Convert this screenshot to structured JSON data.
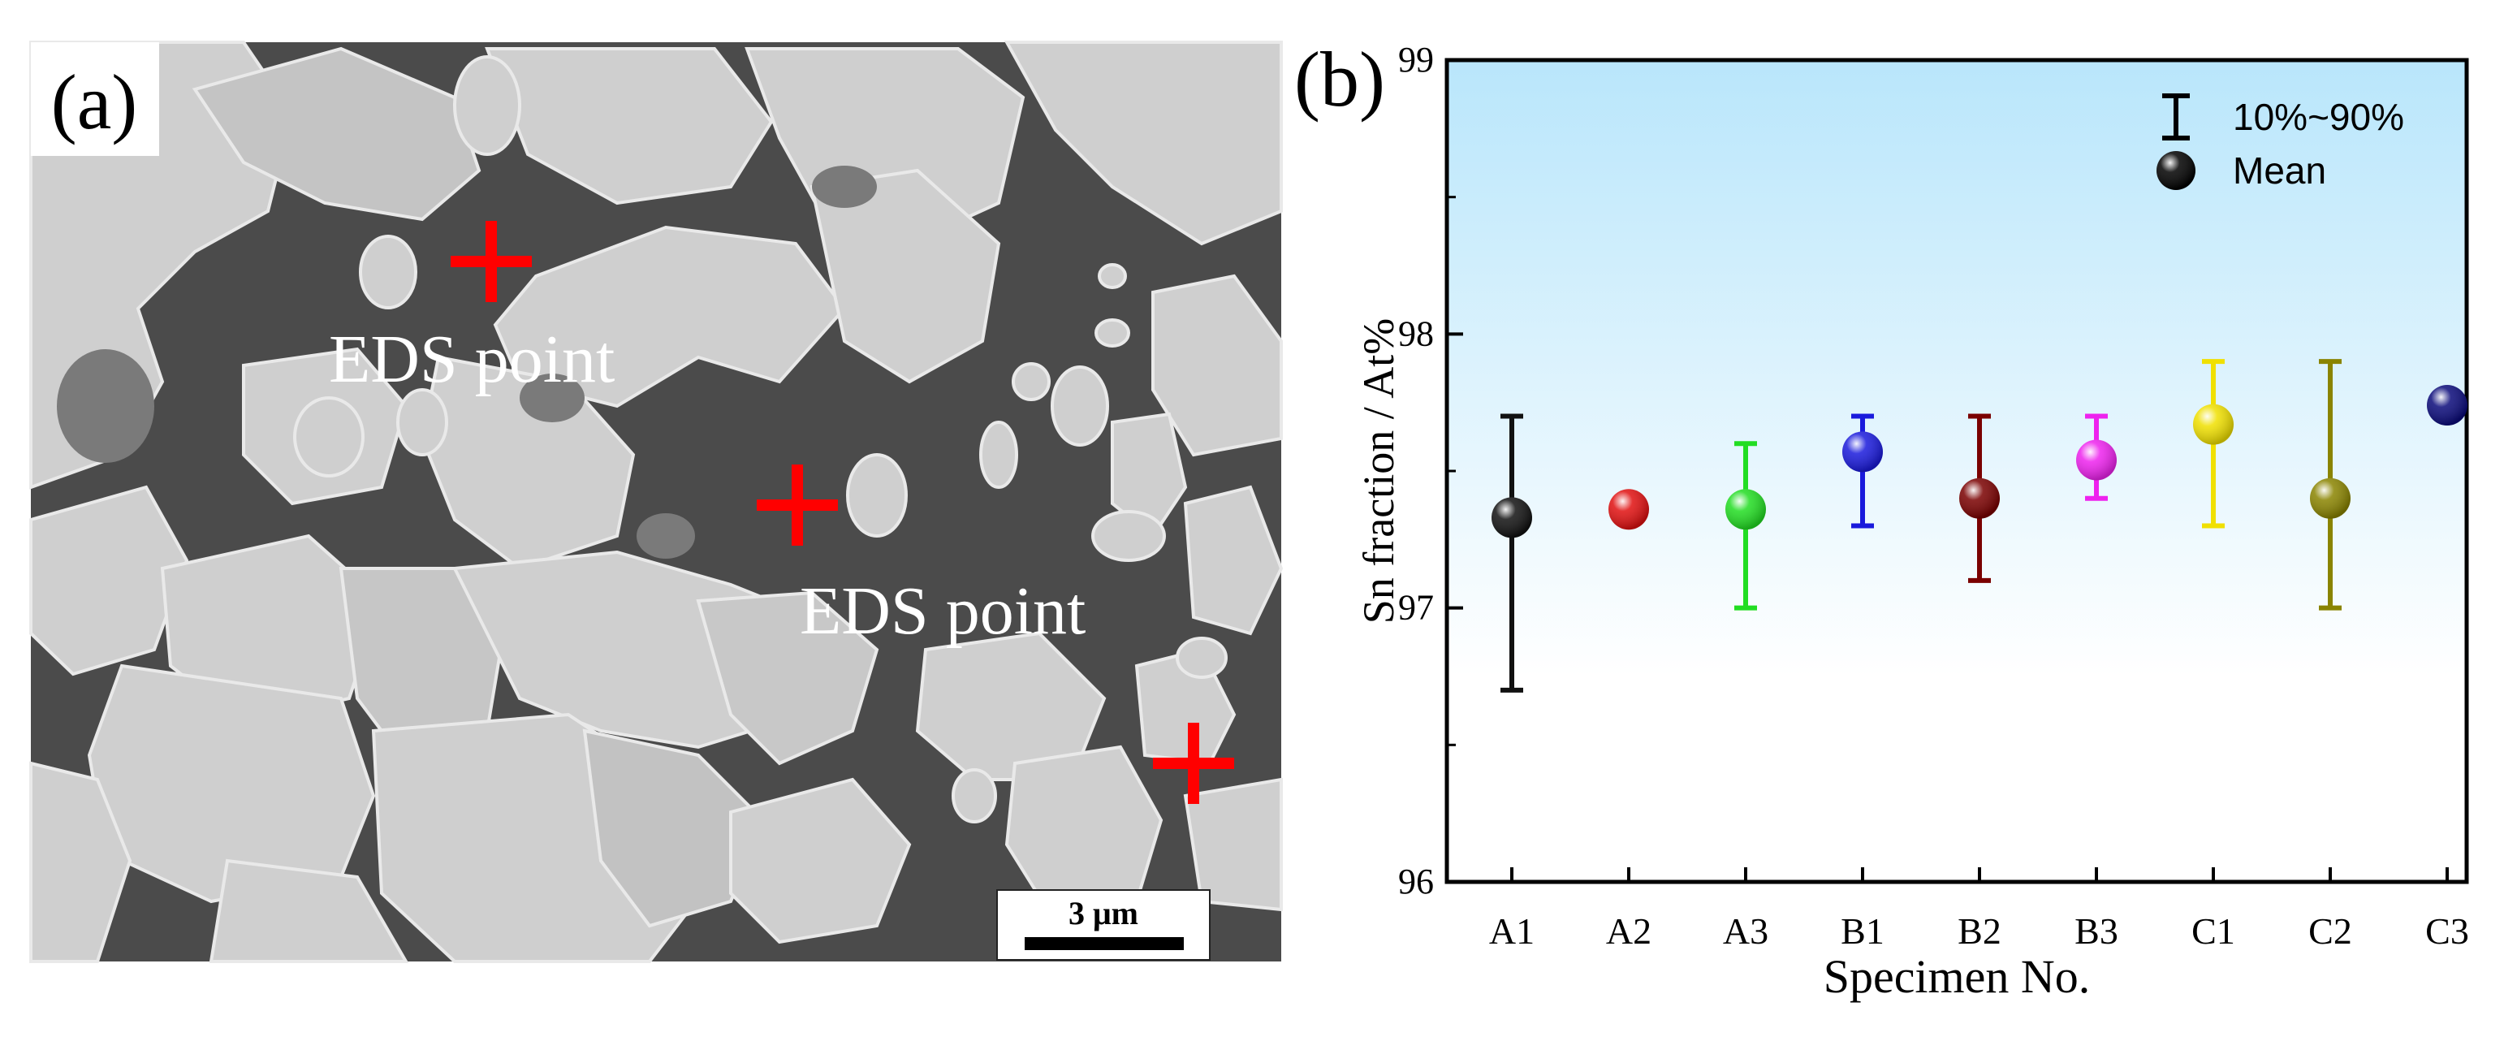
{
  "panel_a": {
    "label": "(a)",
    "annotations": [
      {
        "text": "EDS point"
      },
      {
        "text": "EDS point"
      }
    ],
    "scale_bar": {
      "label": "3 μm"
    },
    "colors": {
      "matrix": "#4b4b4b",
      "grain": "#cfcfcf",
      "marker": "#ff0000"
    }
  },
  "panel_b": {
    "label": "(b)"
  },
  "chart_data": {
    "type": "scatter",
    "title": "",
    "xlabel": "Specimen No.",
    "ylabel": "Sn fraction / At%",
    "categories": [
      "A1",
      "A2",
      "A3",
      "B1",
      "B2",
      "B3",
      "C1",
      "C2",
      "C3"
    ],
    "ylim": [
      96,
      99
    ],
    "yticks": [
      "96",
      "97",
      "98",
      "99"
    ],
    "grid": false,
    "legend": {
      "position": "top-right",
      "entries": [
        {
          "label": "10%~90%",
          "marker": "error-bar"
        },
        {
          "label": "Mean",
          "marker": "sphere"
        }
      ]
    },
    "series": [
      {
        "mean": [
          97.33,
          97.36,
          97.36,
          97.57,
          97.4,
          97.54,
          97.67,
          97.4,
          97.74
        ],
        "p10": [
          96.7,
          97.36,
          97.0,
          97.3,
          97.1,
          97.4,
          97.3,
          97.0,
          97.74
        ],
        "p90": [
          97.7,
          97.36,
          97.6,
          97.7,
          97.7,
          97.7,
          97.9,
          97.9,
          97.74
        ],
        "colors": [
          "#111111",
          "#e01010",
          "#22dd22",
          "#1a1adc",
          "#7a0000",
          "#ee22ee",
          "#f0e000",
          "#8a8400",
          "#0a0a7a"
        ]
      }
    ],
    "background_gradient": [
      "#b9e6fb",
      "#ffffff"
    ]
  }
}
